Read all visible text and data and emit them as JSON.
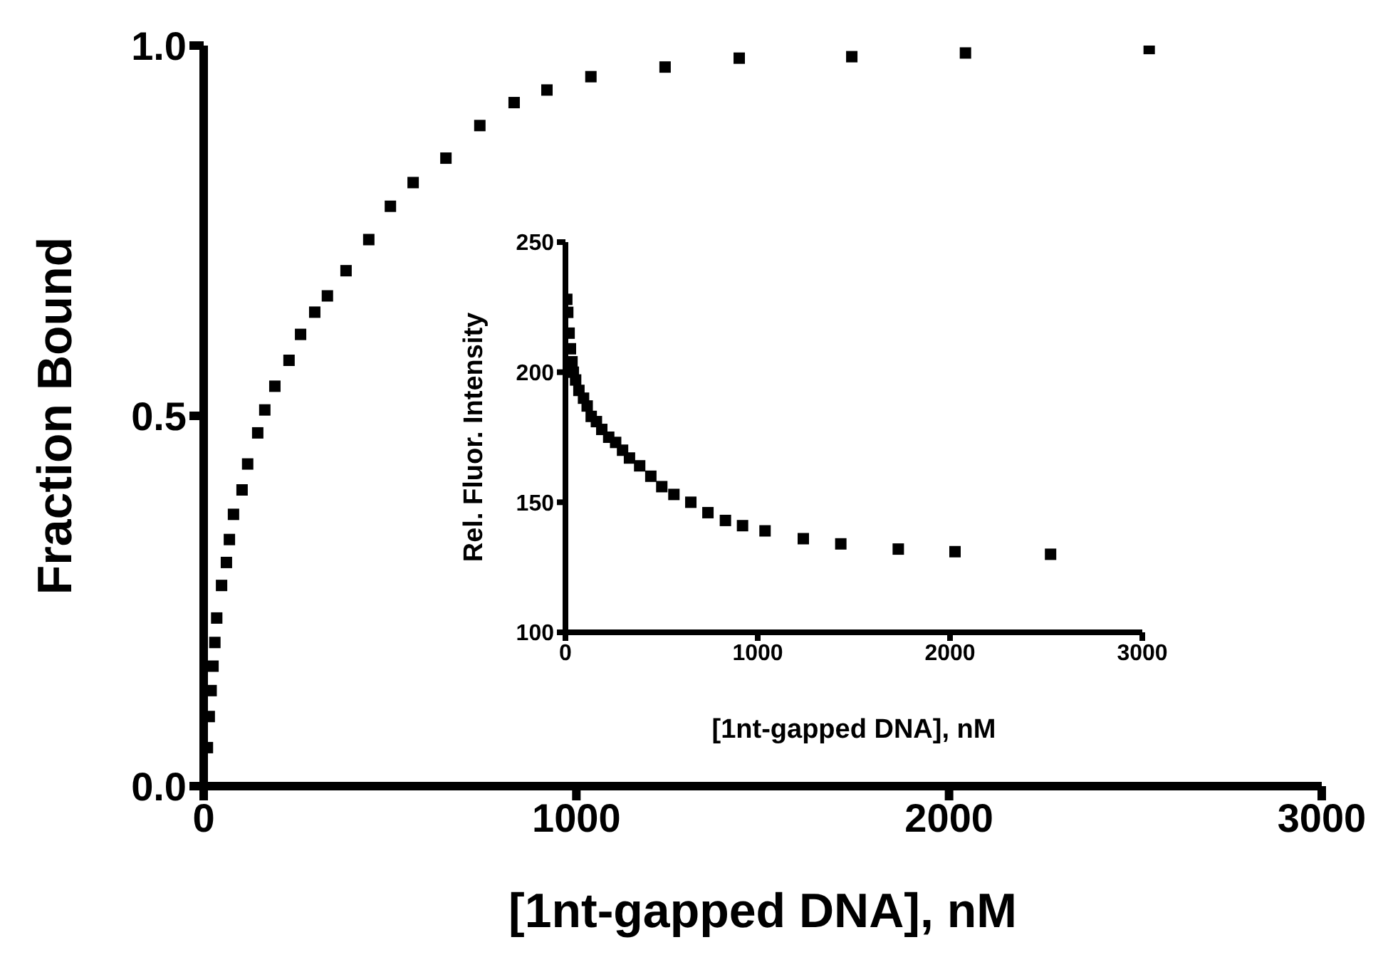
{
  "chart_data": [
    {
      "type": "scatter",
      "xlabel": "[1nt-gapped DNA], nM",
      "ylabel": "Fraction Bound",
      "marker": "square",
      "color": "#000000",
      "x": [
        10,
        15,
        20,
        25,
        30,
        35,
        48,
        61,
        69,
        80,
        103,
        118,
        145,
        164,
        191,
        229,
        260,
        298,
        332,
        382,
        443,
        501,
        562,
        650,
        741,
        833,
        921,
        1039,
        1238,
        1437,
        1739,
        2044,
        2537
      ],
      "values": [
        0.052,
        0.094,
        0.129,
        0.162,
        0.194,
        0.227,
        0.271,
        0.302,
        0.333,
        0.367,
        0.4,
        0.435,
        0.477,
        0.508,
        0.54,
        0.575,
        0.61,
        0.64,
        0.662,
        0.696,
        0.738,
        0.783,
        0.815,
        0.848,
        0.892,
        0.923,
        0.94,
        0.958,
        0.971,
        0.983,
        0.985,
        0.99,
        0.996
      ],
      "xlim": [
        0,
        3000
      ],
      "xticks": [
        0,
        1000,
        2000,
        3000
      ],
      "ylim": [
        0,
        1
      ],
      "yticks": [
        {
          "value": 0,
          "label": "0.0"
        },
        {
          "value": 0.5,
          "label": "0.5"
        },
        {
          "value": 1,
          "label": "1.0"
        }
      ]
    },
    {
      "type": "scatter",
      "xlabel": "[1nt-gapped DNA], nM",
      "ylabel": "Rel. Fluor. Intensity",
      "marker": "square",
      "color": "#000000",
      "x": [
        7,
        12,
        19,
        26,
        34,
        41,
        53,
        70,
        94,
        113,
        134,
        161,
        189,
        225,
        261,
        297,
        333,
        386,
        444,
        501,
        564,
        652,
        741,
        832,
        921,
        1038,
        1237,
        1432,
        1731,
        2026,
        2523
      ],
      "values": [
        228,
        223,
        215,
        209,
        204,
        200,
        197,
        193,
        190,
        187,
        183,
        181,
        178,
        175,
        173,
        170,
        167,
        164,
        160,
        156,
        153,
        150,
        146,
        143,
        141,
        139,
        136,
        134,
        132,
        131,
        130
      ],
      "xlim": [
        0,
        3000
      ],
      "xticks": [
        0,
        1000,
        2000,
        3000
      ],
      "ylim": [
        100,
        250
      ],
      "yticks": [
        100,
        150,
        200,
        250
      ]
    }
  ]
}
